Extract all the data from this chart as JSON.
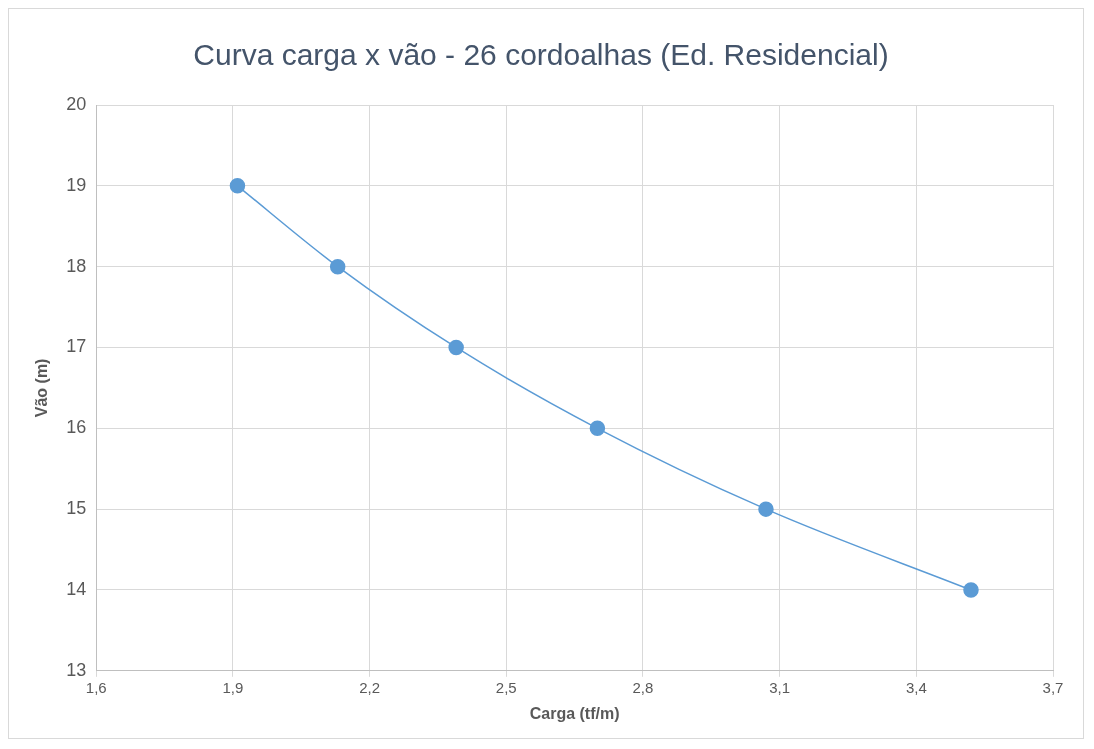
{
  "chart_data": {
    "type": "line",
    "title": "Curva carga x vão - 26 cordoalhas (Ed. Residencial)",
    "xlabel": "Carga (tf/m)",
    "ylabel": "Vão (m)",
    "x": [
      1.91,
      2.13,
      2.39,
      2.7,
      3.07,
      3.52
    ],
    "series": [
      {
        "color": "#5b9bd5",
        "values": [
          19,
          18,
          17,
          16,
          15,
          14
        ]
      }
    ],
    "xlim": [
      1.6,
      3.7
    ],
    "xticks": [
      {
        "value": 1.6,
        "label": "1,6"
      },
      {
        "value": 1.9,
        "label": "1,9"
      },
      {
        "value": 2.2,
        "label": "2,2"
      },
      {
        "value": 2.5,
        "label": "2,5"
      },
      {
        "value": 2.8,
        "label": "2,8"
      },
      {
        "value": 3.1,
        "label": "3,1"
      },
      {
        "value": 3.4,
        "label": "3,4"
      },
      {
        "value": 3.7,
        "label": "3,7"
      }
    ],
    "ylim": [
      13,
      20
    ],
    "yticks": [
      13,
      14,
      15,
      16,
      17,
      18,
      19,
      20
    ],
    "grid": true,
    "legend": false,
    "marker": "circle",
    "line_style": "solid"
  }
}
